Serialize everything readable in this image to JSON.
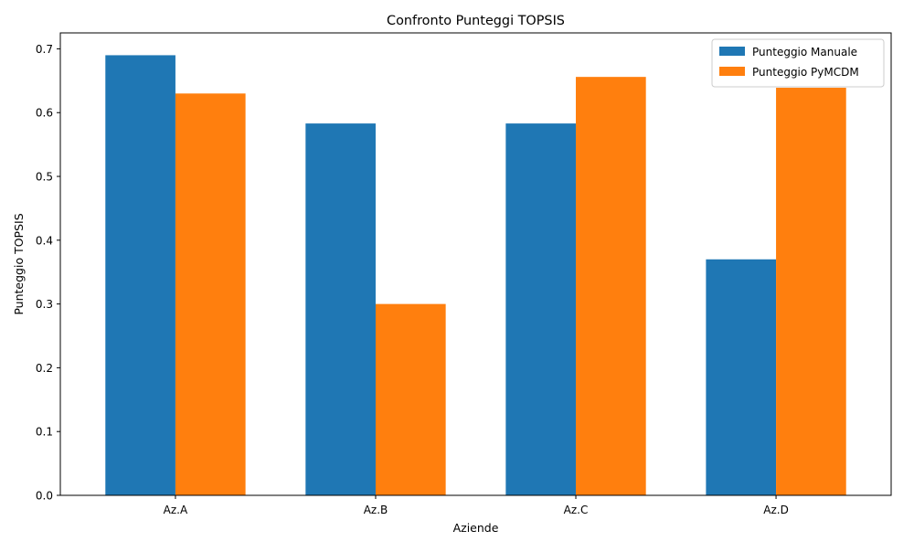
{
  "chart_data": {
    "type": "bar",
    "title": "Confronto Punteggi TOPSIS",
    "xlabel": "Aziende",
    "ylabel": "Punteggio TOPSIS",
    "categories": [
      "Az.A",
      "Az.B",
      "Az.C",
      "Az.D"
    ],
    "series": [
      {
        "name": "Punteggio Manuale",
        "color": "#1f77b4",
        "values": [
          0.69,
          0.583,
          0.583,
          0.37
        ]
      },
      {
        "name": "Punteggio PyMCDM",
        "color": "#ff7f0e",
        "values": [
          0.63,
          0.3,
          0.656,
          0.639
        ]
      }
    ],
    "ylim": [
      0,
      0.725
    ],
    "yticks": [
      "0.0",
      "0.1",
      "0.2",
      "0.3",
      "0.4",
      "0.5",
      "0.6",
      "0.7"
    ],
    "grid": false,
    "legend_position": "top-right"
  }
}
